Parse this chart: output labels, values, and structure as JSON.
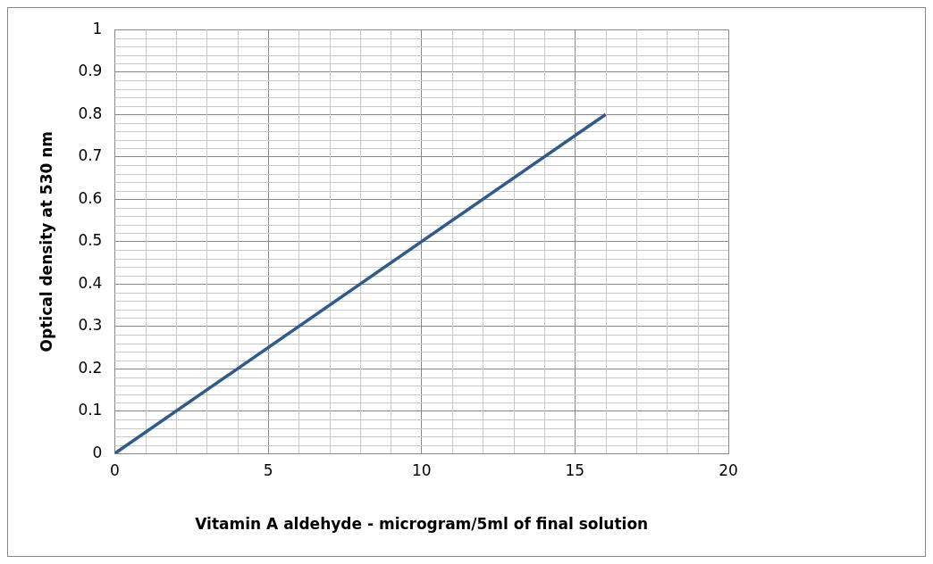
{
  "chart_data": {
    "type": "line",
    "xlabel": "Vitamin A aldehyde - microgram/5ml of final solution",
    "ylabel": "Optical density at 530 nm",
    "x": [
      0,
      16
    ],
    "series": [
      {
        "color": "#2f5b8c",
        "values": [
          0,
          0.8
        ]
      }
    ],
    "xlim": [
      0,
      20
    ],
    "xticks": [
      0,
      5,
      10,
      15,
      20
    ],
    "ylim": [
      0,
      1
    ],
    "yticks": [
      0,
      0.1,
      0.2,
      0.3,
      0.4,
      0.5,
      0.6,
      0.7,
      0.8,
      0.9,
      1
    ],
    "grid": true,
    "marker": "none",
    "line_style": "solid",
    "legend": false
  }
}
